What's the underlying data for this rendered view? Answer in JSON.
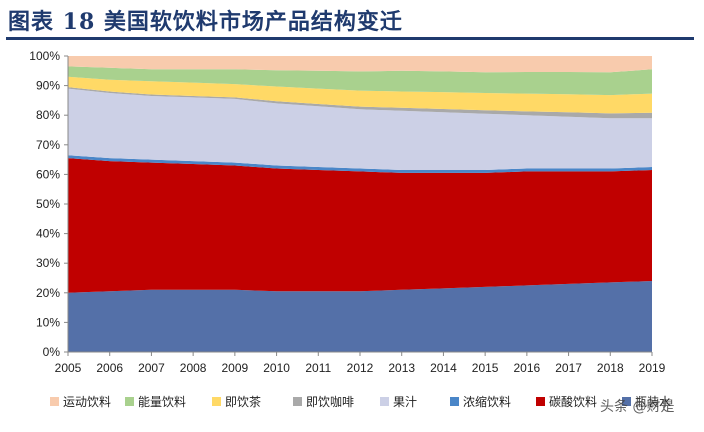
{
  "header": {
    "title": "图表 18  美国软饮料市场产品结构变迁"
  },
  "watermark": "头条 @财是",
  "chart_data": {
    "type": "area",
    "stacked": true,
    "x": [
      "2005",
      "2006",
      "2007",
      "2008",
      "2009",
      "2010",
      "2011",
      "2012",
      "2013",
      "2014",
      "2015",
      "2016",
      "2017",
      "2018",
      "2019"
    ],
    "ylim": [
      0,
      100
    ],
    "yticks": [
      "0%",
      "10%",
      "20%",
      "30%",
      "40%",
      "50%",
      "60%",
      "70%",
      "80%",
      "90%",
      "100%"
    ],
    "legend_position": "bottom",
    "grid": false,
    "series": [
      {
        "name": "瓶装水",
        "color": "#5470a8",
        "values": [
          20,
          20.5,
          21,
          21,
          21,
          20.5,
          20.5,
          20.5,
          21,
          21.5,
          22,
          22.5,
          23,
          23.5,
          24
        ]
      },
      {
        "name": "碳酸饮料",
        "color": "#c00000",
        "values": [
          45.5,
          44,
          43,
          42.5,
          42,
          41.5,
          41,
          40.5,
          39.5,
          39,
          38.5,
          38.5,
          38,
          37.5,
          37.5
        ]
      },
      {
        "name": "浓缩饮料",
        "color": "#4a86c8",
        "values": [
          1,
          1,
          1,
          1,
          1,
          1,
          1,
          1,
          1,
          1,
          1,
          1,
          1,
          1,
          1
        ]
      },
      {
        "name": "果汁",
        "color": "#ccd0e6",
        "values": [
          22.5,
          22,
          21.5,
          21.5,
          21.5,
          21,
          20.5,
          20,
          20,
          19.5,
          19,
          18,
          17.5,
          17,
          16.5
        ]
      },
      {
        "name": "即饮咖啡",
        "color": "#a9a9a9",
        "values": [
          0.5,
          0.5,
          0.5,
          0.5,
          0.5,
          0.7,
          0.8,
          0.9,
          1,
          1.1,
          1.2,
          1.3,
          1.5,
          1.6,
          1.8
        ]
      },
      {
        "name": "即饮茶",
        "color": "#ffd966",
        "values": [
          3.5,
          4,
          4.5,
          4.5,
          4.5,
          5,
          5.2,
          5.4,
          5.5,
          5.7,
          5.8,
          6,
          6.1,
          6.2,
          6.5
        ]
      },
      {
        "name": "能量饮料",
        "color": "#a9d18e",
        "values": [
          3.5,
          4,
          4,
          4.5,
          5,
          5.5,
          6,
          6.5,
          7,
          7,
          7,
          7.3,
          7.5,
          7.7,
          8.2
        ]
      },
      {
        "name": "运动饮料",
        "color": "#f8cbad",
        "values": [
          3.5,
          4,
          4.5,
          4.5,
          4.5,
          4.8,
          5,
          5.2,
          5,
          5.2,
          5.5,
          5.4,
          5.4,
          5.5,
          4.5
        ]
      }
    ],
    "legend_order": [
      "运动饮料",
      "能量饮料",
      "即饮茶",
      "即饮咖啡",
      "果汁",
      "浓缩饮料",
      "碳酸饮料",
      "瓶装水"
    ]
  }
}
